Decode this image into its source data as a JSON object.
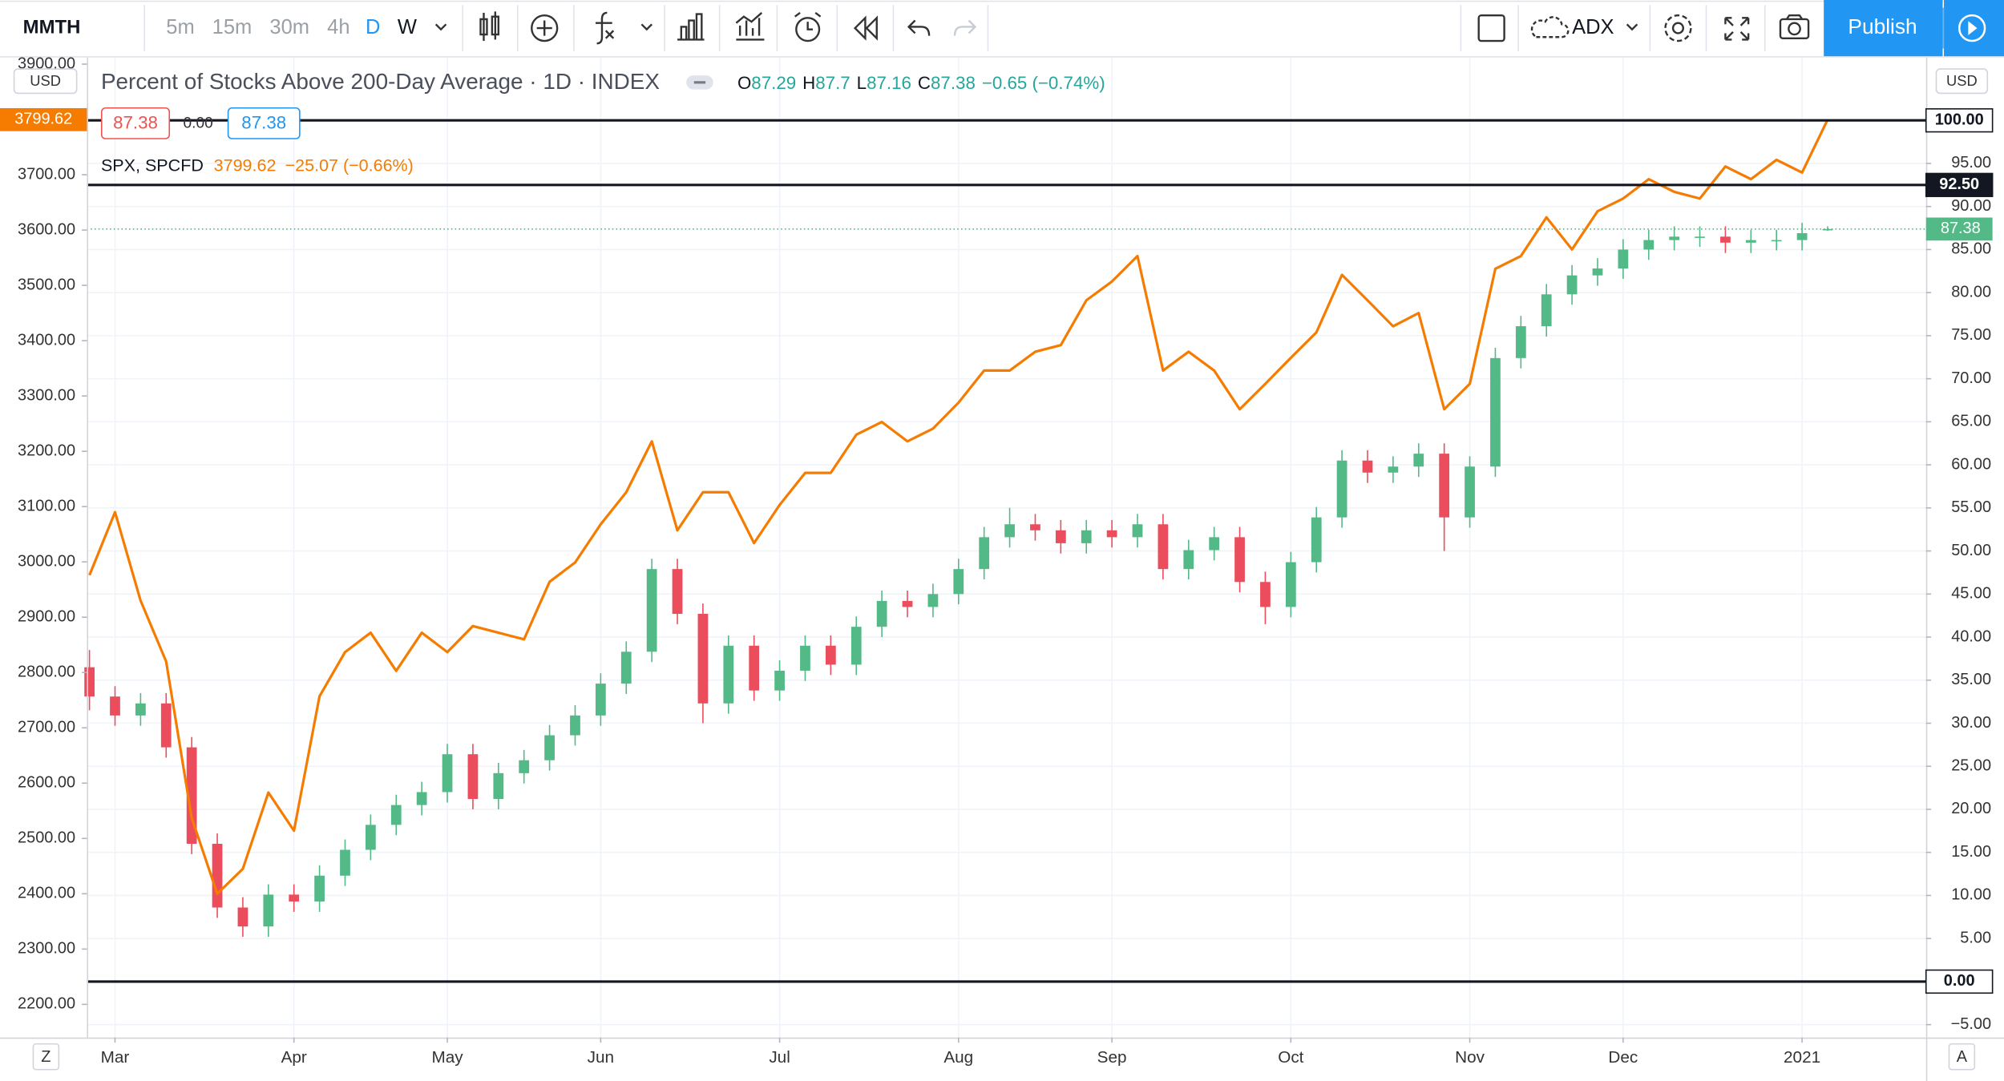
{
  "toolbar": {
    "symbol": "MMTH",
    "intervals": [
      "5m",
      "15m",
      "30m",
      "4h",
      "D",
      "W"
    ],
    "indicator": "ADX",
    "publish": "Publish"
  },
  "currency": "USD",
  "scale_buttons": [
    "Z",
    "A"
  ],
  "header": {
    "o": "O",
    "h": "H",
    "l": "L",
    "c": "C",
    "change": "−0.65 (−0.74%)",
    "box_mid": "0.00"
  },
  "spx_legend": {
    "change": "−25.07 (−0.66%)"
  },
  "chart_data": {
    "type": "candlestick",
    "grid": true,
    "categories": [
      null,
      "Mar",
      null,
      null,
      null,
      null,
      null,
      null,
      "Apr",
      null,
      null,
      null,
      null,
      null,
      "May",
      null,
      null,
      null,
      null,
      null,
      "Jun",
      null,
      null,
      null,
      null,
      null,
      null,
      "Jul",
      null,
      null,
      null,
      null,
      null,
      null,
      "Aug",
      null,
      null,
      null,
      null,
      null,
      "Sep",
      null,
      null,
      null,
      null,
      null,
      null,
      "Oct",
      null,
      null,
      null,
      null,
      null,
      null,
      "Nov",
      null,
      null,
      null,
      null,
      null,
      "Dec",
      null,
      null,
      null,
      null,
      null,
      null,
      "2021",
      null
    ],
    "ylim": [
      2140,
      3912
    ],
    "yticks": [
      {
        "value": 2200,
        "label": "2200.00"
      },
      {
        "value": 2300,
        "label": "2300.00"
      },
      {
        "value": 2400,
        "label": "2400.00"
      },
      {
        "value": 2500,
        "label": "2500.00"
      },
      {
        "value": 2600,
        "label": "2600.00"
      },
      {
        "value": 2700,
        "label": "2700.00"
      },
      {
        "value": 2800,
        "label": "2800.00"
      },
      {
        "value": 2900,
        "label": "2900.00"
      },
      {
        "value": 3000,
        "label": "3000.00"
      },
      {
        "value": 3100,
        "label": "3100.00"
      },
      {
        "value": 3200,
        "label": "3200.00"
      },
      {
        "value": 3300,
        "label": "3300.00"
      },
      {
        "value": 3400,
        "label": "3400.00"
      },
      {
        "value": 3500,
        "label": "3500.00"
      },
      {
        "value": 3600,
        "label": "3600.00"
      },
      {
        "value": 3700,
        "label": "3700.00"
      },
      {
        "value": 3800,
        "label": "3800.00"
      },
      {
        "value": 3900,
        "label": "3900.00"
      }
    ],
    "y2lim": [
      -6.5,
      107.3
    ],
    "y2ticks": [
      {
        "value": -5,
        "label": "−5.00"
      },
      {
        "value": 5,
        "label": "5.00"
      },
      {
        "value": 10,
        "label": "10.00"
      },
      {
        "value": 15,
        "label": "15.00"
      },
      {
        "value": 20,
        "label": "20.00"
      },
      {
        "value": 25,
        "label": "25.00"
      },
      {
        "value": 30,
        "label": "30.00"
      },
      {
        "value": 35,
        "label": "35.00"
      },
      {
        "value": 40,
        "label": "40.00"
      },
      {
        "value": 45,
        "label": "45.00"
      },
      {
        "value": 50,
        "label": "50.00"
      },
      {
        "value": 55,
        "label": "55.00"
      },
      {
        "value": 60,
        "label": "60.00"
      },
      {
        "value": 65,
        "label": "65.00"
      },
      {
        "value": 70,
        "label": "70.00"
      },
      {
        "value": 75,
        "label": "75.00"
      },
      {
        "value": 80,
        "label": "80.00"
      },
      {
        "value": 85,
        "label": "85.00"
      },
      {
        "value": 90,
        "label": "90.00"
      },
      {
        "value": 95,
        "label": "95.00"
      }
    ],
    "hlines": [
      {
        "value": 100,
        "label": "100.00"
      },
      {
        "value": 92.5,
        "label": "92.50"
      },
      {
        "value": 0,
        "label": "0.00"
      }
    ],
    "series": [
      {
        "type": "candlestick",
        "name": "Percent of Stocks Above 200-Day Average · 1D · INDEX",
        "axis": "y2",
        "up_color": "#53b987",
        "down_color": "#eb4d5c",
        "open": [
          36.5,
          33.1,
          30.9,
          32.3,
          27.2,
          16.0,
          8.6,
          6.4,
          10.1,
          9.3,
          12.3,
          15.3,
          18.2,
          20.5,
          22.0,
          26.4,
          21.2,
          24.2,
          25.7,
          28.6,
          30.9,
          34.6,
          38.3,
          47.9,
          42.7,
          32.3,
          39.0,
          33.8,
          36.1,
          39.0,
          36.8,
          41.2,
          44.2,
          43.5,
          45.0,
          47.9,
          51.6,
          53.1,
          52.4,
          50.9,
          52.4,
          51.6,
          53.1,
          47.9,
          50.1,
          51.6,
          46.4,
          43.5,
          48.7,
          53.9,
          60.5,
          59.1,
          59.8,
          61.3,
          53.9,
          59.8,
          72.4,
          76.1,
          79.8,
          82.0,
          82.8,
          85.0,
          86.1,
          86.5,
          86.5,
          85.8,
          86.1,
          86.1,
          87.29
        ],
        "high": [
          38.5,
          34.3,
          33.5,
          33.5,
          28.4,
          17.2,
          9.8,
          11.3,
          11.3,
          13.5,
          16.5,
          19.4,
          21.7,
          23.2,
          27.6,
          27.6,
          25.4,
          26.9,
          29.8,
          32.1,
          35.8,
          39.5,
          49.1,
          49.1,
          43.9,
          40.2,
          40.2,
          37.3,
          40.2,
          40.2,
          42.4,
          45.4,
          45.4,
          46.2,
          49.1,
          52.8,
          55.0,
          54.3,
          53.6,
          53.6,
          53.6,
          54.3,
          54.3,
          51.3,
          52.8,
          52.8,
          47.6,
          49.9,
          55.1,
          61.7,
          61.7,
          61.0,
          62.5,
          62.5,
          61.0,
          73.6,
          77.3,
          81.0,
          83.2,
          84.0,
          86.2,
          87.3,
          87.7,
          87.7,
          87.7,
          87.3,
          87.3,
          88.1,
          87.7
        ],
        "low": [
          31.5,
          29.7,
          29.7,
          26.0,
          14.8,
          7.4,
          5.2,
          5.2,
          8.1,
          8.1,
          11.1,
          14.1,
          17.0,
          19.3,
          20.8,
          20.0,
          20.0,
          23.0,
          24.5,
          27.4,
          29.7,
          33.4,
          37.1,
          41.5,
          30.0,
          31.1,
          32.6,
          32.6,
          34.9,
          35.6,
          35.6,
          40.0,
          42.3,
          42.3,
          43.8,
          46.7,
          50.4,
          51.2,
          49.7,
          49.7,
          50.4,
          50.4,
          46.7,
          46.7,
          48.9,
          45.2,
          41.5,
          42.3,
          47.5,
          52.7,
          57.9,
          57.9,
          58.6,
          50.0,
          52.7,
          58.6,
          71.2,
          74.9,
          78.6,
          80.8,
          81.6,
          83.8,
          84.9,
          85.3,
          84.6,
          84.6,
          84.9,
          84.9,
          87.16
        ],
        "close": [
          33.1,
          30.9,
          32.3,
          27.2,
          16.0,
          8.6,
          6.4,
          10.1,
          9.3,
          12.3,
          15.3,
          18.2,
          20.5,
          22.0,
          26.4,
          21.2,
          24.2,
          25.7,
          28.6,
          30.9,
          34.6,
          38.3,
          47.9,
          42.7,
          32.3,
          39.0,
          33.8,
          36.1,
          39.0,
          36.8,
          41.2,
          44.2,
          43.5,
          45.0,
          47.9,
          51.6,
          53.1,
          52.4,
          50.9,
          52.4,
          51.6,
          53.1,
          47.9,
          50.1,
          51.6,
          46.4,
          43.5,
          48.7,
          53.9,
          60.5,
          59.1,
          59.8,
          61.3,
          53.9,
          59.8,
          72.4,
          76.1,
          79.8,
          82.0,
          82.8,
          85.0,
          86.1,
          86.5,
          86.5,
          85.8,
          86.1,
          86.1,
          86.9,
          87.38
        ]
      },
      {
        "type": "line",
        "name": "SPX, SPCFD",
        "color": "#f57c00",
        "values": [
          2976,
          3090,
          2930,
          2820,
          2537,
          2400,
          2445,
          2583,
          2514,
          2757,
          2837,
          2872,
          2803,
          2872,
          2837,
          2884,
          2872,
          2860,
          2964,
          2999,
          3068,
          3126,
          3218,
          3057,
          3126,
          3126,
          3034,
          3103,
          3161,
          3161,
          3230,
          3253,
          3218,
          3241,
          3288,
          3346,
          3346,
          3380,
          3392,
          3473,
          3507,
          3553,
          3346,
          3380,
          3346,
          3276,
          3322,
          3369,
          3415,
          3519,
          3473,
          3426,
          3450,
          3276,
          3322,
          3530,
          3553,
          3623,
          3565,
          3634,
          3657,
          3692,
          3669,
          3657,
          3715,
          3692,
          3727,
          3704,
          3799.62
        ]
      }
    ]
  }
}
